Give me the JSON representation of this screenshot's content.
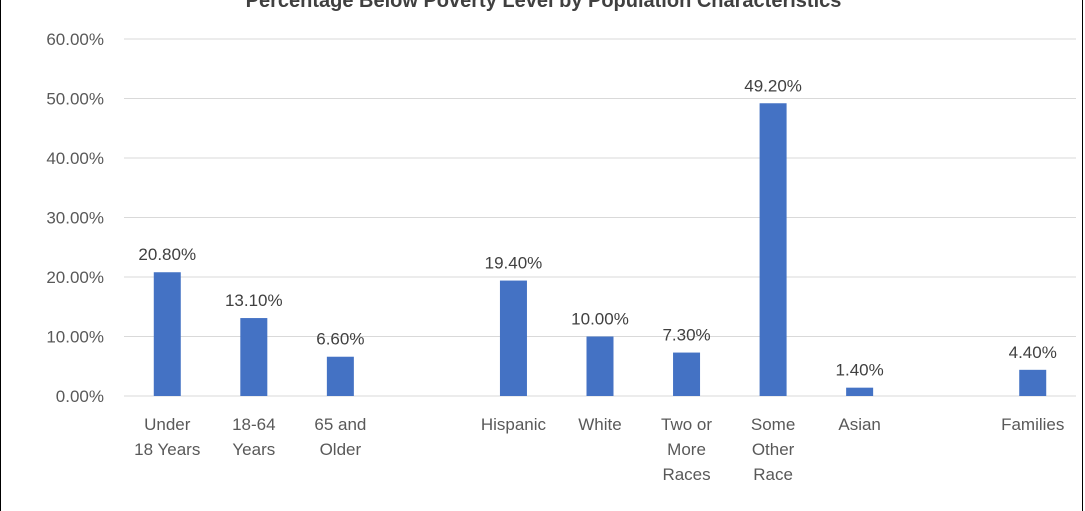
{
  "chart_data": {
    "type": "bar",
    "title": "Percentage Below Poverty Level by Population Characteristics",
    "xlabel": "",
    "ylabel": "",
    "ylim": [
      0,
      60
    ],
    "yticks": [
      "0.00%",
      "10.00%",
      "20.00%",
      "30.00%",
      "40.00%",
      "50.00%",
      "60.00%"
    ],
    "grid": true,
    "legend": "none",
    "bar_color": "#4472c4",
    "categories": [
      {
        "label": [
          "Under",
          "18 Years"
        ],
        "value": 20.8,
        "data_label": "20.80%"
      },
      {
        "label": [
          "18-64",
          "Years"
        ],
        "value": 13.1,
        "data_label": "13.10%"
      },
      {
        "label": [
          "65 and",
          "Older"
        ],
        "value": 6.6,
        "data_label": "6.60%"
      },
      {
        "label": [],
        "value": null,
        "data_label": ""
      },
      {
        "label": [
          "Hispanic"
        ],
        "value": 19.4,
        "data_label": "19.40%"
      },
      {
        "label": [
          "White"
        ],
        "value": 10.0,
        "data_label": "10.00%"
      },
      {
        "label": [
          "Two or",
          "More",
          "Races"
        ],
        "value": 7.3,
        "data_label": "7.30%"
      },
      {
        "label": [
          "Some",
          "Other",
          "Race"
        ],
        "value": 49.2,
        "data_label": "49.20%"
      },
      {
        "label": [
          "Asian"
        ],
        "value": 1.4,
        "data_label": "1.40%"
      },
      {
        "label": [],
        "value": null,
        "data_label": ""
      },
      {
        "label": [
          "Families"
        ],
        "value": 4.4,
        "data_label": "4.40%"
      }
    ]
  }
}
